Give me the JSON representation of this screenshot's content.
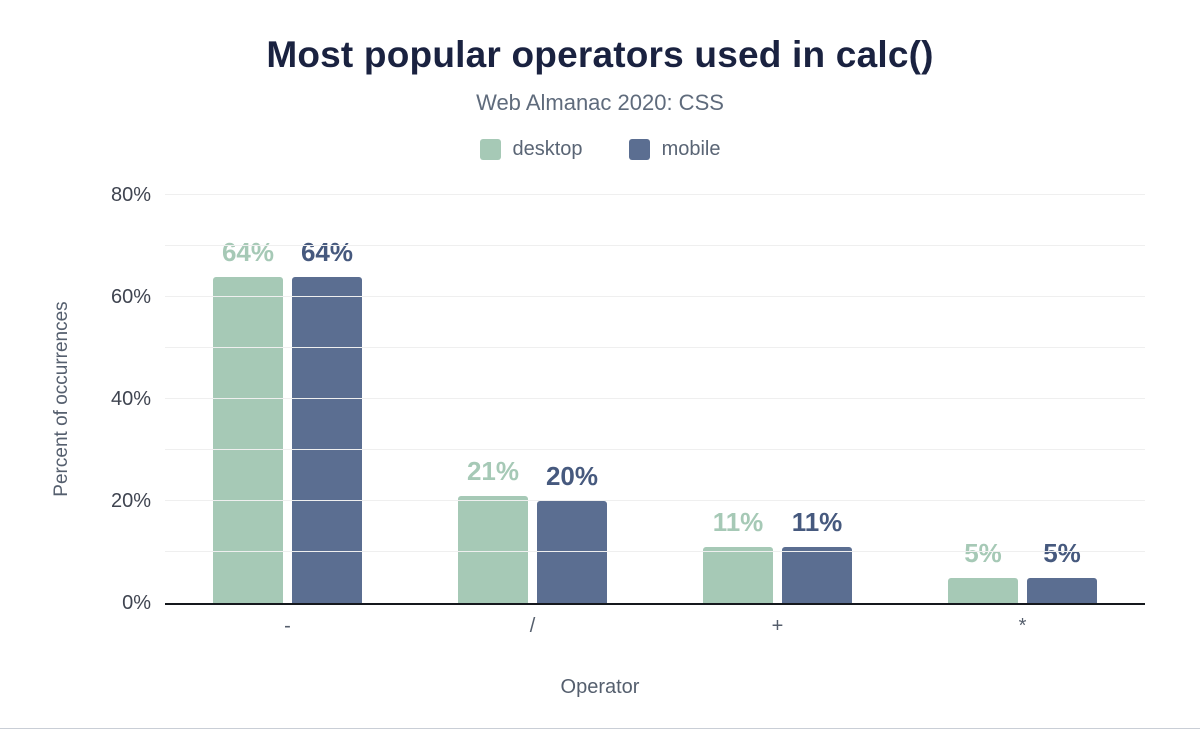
{
  "chart": {
    "title": "Most popular operators used in calc()",
    "subtitle": "Web Almanac 2020: CSS",
    "xlabel": "Operator",
    "ylabel": "Percent of occurrences"
  },
  "chart_data": {
    "type": "bar",
    "categories": [
      "-",
      "/",
      "+",
      "*"
    ],
    "series": [
      {
        "name": "desktop",
        "color": "#a6c9b6",
        "label_color": "#a6c9b6",
        "values": [
          64,
          21,
          11,
          5
        ]
      },
      {
        "name": "mobile",
        "color": "#5b6e91",
        "label_color": "#46597e",
        "values": [
          64,
          20,
          11,
          5
        ]
      }
    ],
    "value_suffix": "%",
    "ylim": [
      0,
      80
    ],
    "yticks": [
      0,
      20,
      40,
      60,
      80
    ],
    "grid_step": 10,
    "grid": true,
    "legend_position": "top",
    "title_color": "#1a2240",
    "axis_line_color": "#15181d"
  }
}
